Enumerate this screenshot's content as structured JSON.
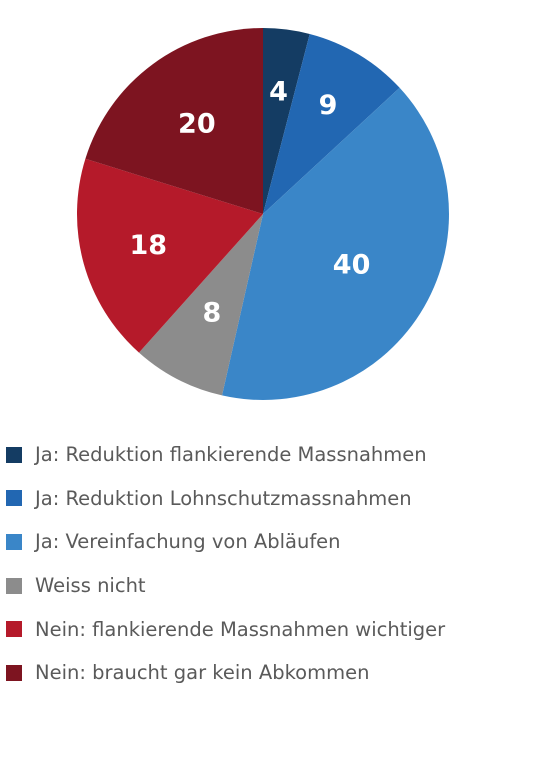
{
  "chart_data": {
    "type": "pie",
    "title": "",
    "start": "top",
    "direction": "clockwise",
    "slices": [
      {
        "label": "Ja: Reduktion flankierende Massnahmen",
        "value": 4,
        "value_label": "4",
        "color": "#143c63"
      },
      {
        "label": "Ja: Reduktion Lohnschutzmassnahmen",
        "value": 9,
        "value_label": "9",
        "color": "#2267b2"
      },
      {
        "label": "Ja: Vereinfachung von Abläufen",
        "value": 40,
        "value_label": "40",
        "color": "#3a86c8"
      },
      {
        "label": "Weiss nicht",
        "value": 8,
        "value_label": "8",
        "color": "#8c8c8c"
      },
      {
        "label": "Nein: flankierende Massnahmen wichtiger",
        "value": 18,
        "value_label": "18",
        "color": "#b51a2a"
      },
      {
        "label": "Nein: braucht gar kein Abkommen",
        "value": 20,
        "value_label": "20",
        "color": "#7d1420"
      }
    ],
    "legend": "bottom-left"
  }
}
